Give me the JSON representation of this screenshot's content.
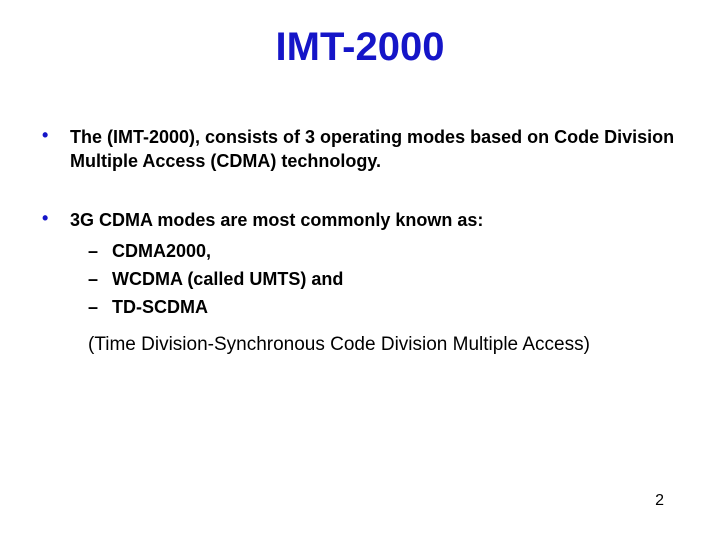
{
  "title": {
    "text": "IMT-2000",
    "color": "#1515c8",
    "fontsize": 40
  },
  "bullets_l1": [
    {
      "marker": "•",
      "text": "The (IMT-2000), consists of 3 operating modes based on Code Division Multiple Access (CDMA) technology.",
      "color": "#000000",
      "marker_color": "#1515c8",
      "fontsize": 18
    },
    {
      "marker": "•",
      "text": "3G CDMA modes are most commonly known as:",
      "color": "#000000",
      "marker_color": "#1515c8",
      "fontsize": 18
    }
  ],
  "bullets_l2": [
    {
      "marker": "–",
      "text": "CDMA2000,",
      "color": "#000000",
      "fontsize": 18
    },
    {
      "marker": "–",
      "text": "WCDMA  (called UMTS) and",
      "color": "#000000",
      "fontsize": 18
    },
    {
      "marker": "–",
      "text": "TD-SCDMA",
      "color": "#000000",
      "fontsize": 18
    }
  ],
  "note": {
    "text": "(Time Division-Synchronous Code Division Multiple Access)",
    "color": "#000000",
    "fontsize": 19
  },
  "page_number": {
    "text": "2",
    "color": "#000000",
    "fontsize": 16
  },
  "background_color": "#ffffff"
}
